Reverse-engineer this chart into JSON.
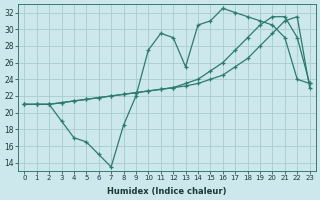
{
  "xlabel": "Humidex (Indice chaleur)",
  "bg_color": "#cce8ec",
  "grid_color": "#aacccc",
  "line_color": "#2d7a6e",
  "xlim": [
    -0.5,
    23.5
  ],
  "ylim": [
    13,
    33
  ],
  "xticks": [
    0,
    1,
    2,
    3,
    4,
    5,
    6,
    7,
    8,
    9,
    10,
    11,
    12,
    13,
    14,
    15,
    16,
    17,
    18,
    19,
    20,
    21,
    22,
    23
  ],
  "yticks": [
    14,
    16,
    18,
    20,
    22,
    24,
    26,
    28,
    30,
    32
  ],
  "curve1_x": [
    0,
    1,
    2,
    3,
    4,
    5,
    6,
    7,
    8,
    9,
    10,
    11,
    12,
    13,
    14,
    15,
    16,
    17,
    18,
    19,
    20,
    21,
    22,
    23
  ],
  "curve1_y": [
    21.0,
    21.0,
    21.0,
    19.0,
    17.0,
    16.5,
    15.0,
    13.5,
    18.5,
    22.0,
    27.5,
    29.5,
    29.0,
    25.5,
    30.5,
    31.0,
    32.5,
    32.0,
    31.5,
    31.0,
    30.5,
    29.0,
    24.0,
    23.5
  ],
  "curve2_x": [
    0,
    1,
    2,
    3,
    4,
    5,
    6,
    7,
    8,
    9,
    10,
    11,
    12,
    13,
    14,
    15,
    16,
    17,
    18,
    19,
    20,
    21,
    22,
    23
  ],
  "curve2_y": [
    21.0,
    21.0,
    21.0,
    21.2,
    21.4,
    21.6,
    21.8,
    22.0,
    22.2,
    22.4,
    22.6,
    22.8,
    23.0,
    23.2,
    23.5,
    24.0,
    24.5,
    25.5,
    26.5,
    28.0,
    29.5,
    31.0,
    31.5,
    23.0
  ],
  "curve3_x": [
    0,
    1,
    2,
    3,
    4,
    5,
    6,
    7,
    8,
    9,
    10,
    11,
    12,
    13,
    14,
    15,
    16,
    17,
    18,
    19,
    20,
    21,
    22,
    23
  ],
  "curve3_y": [
    21.0,
    21.0,
    21.0,
    21.2,
    21.4,
    21.6,
    21.8,
    22.0,
    22.2,
    22.4,
    22.6,
    22.8,
    23.0,
    23.5,
    24.0,
    25.0,
    26.0,
    27.5,
    29.0,
    30.5,
    31.5,
    31.5,
    29.0,
    23.5
  ]
}
